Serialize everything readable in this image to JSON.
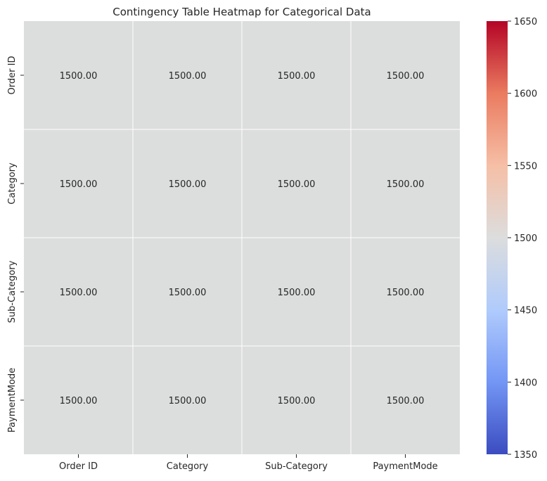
{
  "chart_data": {
    "type": "heatmap",
    "title": "Contingency Table Heatmap for Categorical Data",
    "xlabel": "",
    "ylabel": "",
    "x_categories": [
      "Order ID",
      "Category",
      "Sub-Category",
      "PaymentMode"
    ],
    "y_categories": [
      "Order ID",
      "Category",
      "Sub-Category",
      "PaymentMode"
    ],
    "values": [
      [
        1500.0,
        1500.0,
        1500.0,
        1500.0
      ],
      [
        1500.0,
        1500.0,
        1500.0,
        1500.0
      ],
      [
        1500.0,
        1500.0,
        1500.0,
        1500.0
      ],
      [
        1500.0,
        1500.0,
        1500.0,
        1500.0
      ]
    ],
    "value_format": "0.00",
    "colormap": "coolwarm",
    "colormap_stops": [
      "#3b4cc0",
      "#7396f5",
      "#b0cbfc",
      "#dcdddd",
      "#f6bfa6",
      "#ea7b60",
      "#b40426"
    ],
    "color_range": [
      1350,
      1650
    ],
    "colorbar_ticks": [
      1350,
      1400,
      1450,
      1500,
      1550,
      1600,
      1650
    ],
    "grid_line_color": "#ffffff"
  }
}
